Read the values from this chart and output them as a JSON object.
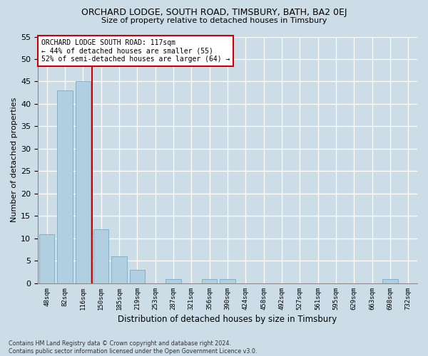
{
  "title": "ORCHARD LODGE, SOUTH ROAD, TIMSBURY, BATH, BA2 0EJ",
  "subtitle": "Size of property relative to detached houses in Timsbury",
  "xlabel": "Distribution of detached houses by size in Timsbury",
  "ylabel": "Number of detached properties",
  "categories": [
    "48sqm",
    "82sqm",
    "116sqm",
    "150sqm",
    "185sqm",
    "219sqm",
    "253sqm",
    "287sqm",
    "321sqm",
    "356sqm",
    "390sqm",
    "424sqm",
    "458sqm",
    "492sqm",
    "527sqm",
    "561sqm",
    "595sqm",
    "629sqm",
    "663sqm",
    "698sqm",
    "732sqm"
  ],
  "values": [
    11,
    43,
    45,
    12,
    6,
    3,
    0,
    1,
    0,
    1,
    1,
    0,
    0,
    0,
    0,
    0,
    0,
    0,
    0,
    1,
    0
  ],
  "bar_color": "#b0cfe0",
  "bar_edge_color": "#7aaabf",
  "background_color": "#cddde8",
  "grid_color": "#ffffff",
  "vline_color": "#cc0000",
  "vline_pos": 2.5,
  "annotation_title": "ORCHARD LODGE SOUTH ROAD: 117sqm",
  "annotation_line1": "← 44% of detached houses are smaller (55)",
  "annotation_line2": "52% of semi-detached houses are larger (64) →",
  "annotation_box_facecolor": "#ffffff",
  "annotation_box_edgecolor": "#cc0000",
  "ylim": [
    0,
    55
  ],
  "ytick_step": 5,
  "footer_line1": "Contains HM Land Registry data © Crown copyright and database right 2024.",
  "footer_line2": "Contains public sector information licensed under the Open Government Licence v3.0."
}
